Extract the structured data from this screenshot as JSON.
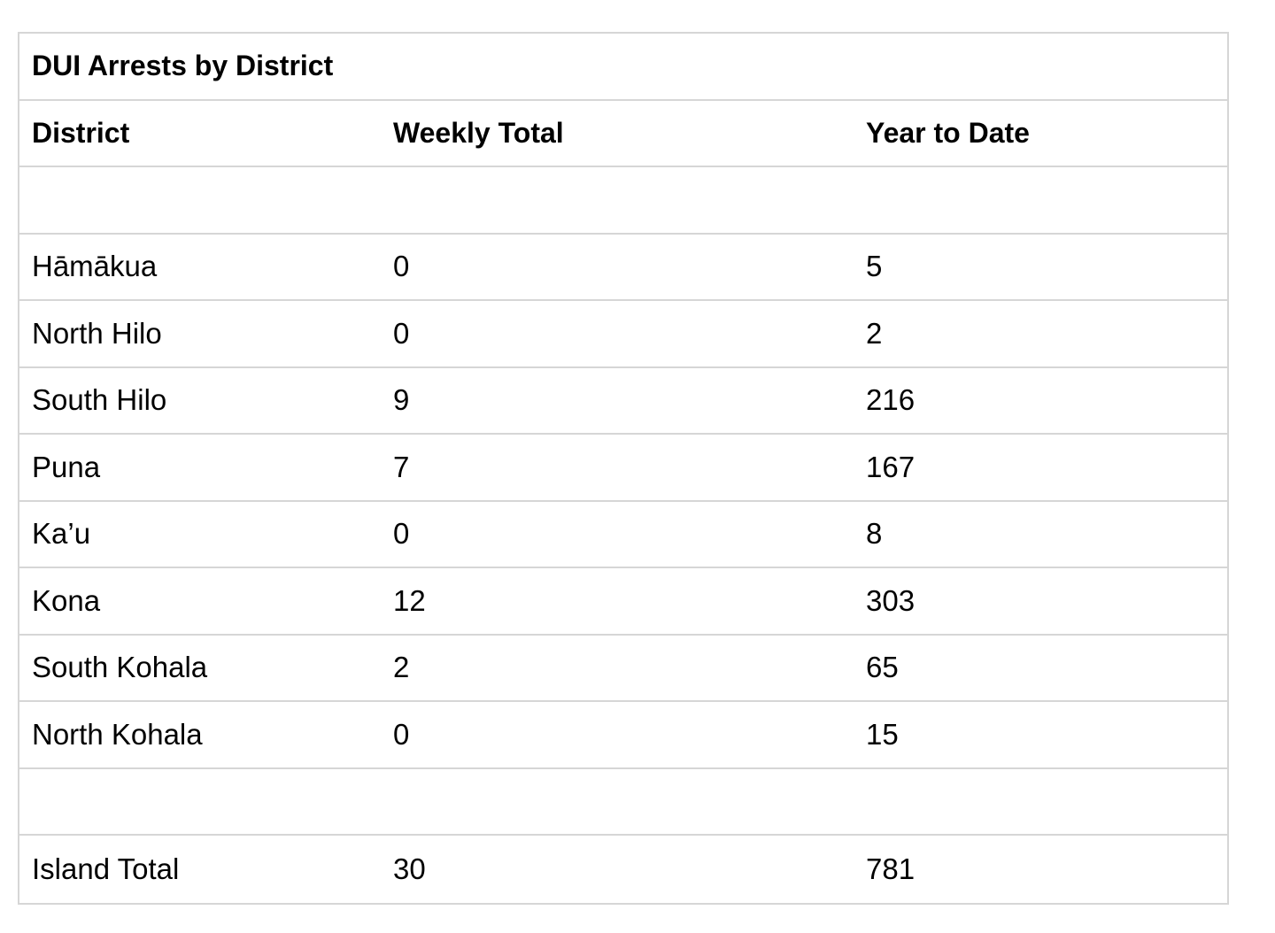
{
  "table": {
    "title": "DUI Arrests by District",
    "headers": [
      "District",
      "Weekly Total",
      "Year to Date"
    ],
    "rows": [
      [
        "",
        "",
        ""
      ],
      [
        "Hāmākua",
        "0",
        "5"
      ],
      [
        "North Hilo",
        "0",
        "2"
      ],
      [
        "South Hilo",
        "9",
        "216"
      ],
      [
        "Puna",
        "7",
        "167"
      ],
      [
        "Ka’u",
        "0",
        "8"
      ],
      [
        "Kona",
        "12",
        "303"
      ],
      [
        "South Kohala",
        "2",
        "65"
      ],
      [
        "North Kohala",
        "0",
        "15"
      ],
      [
        "",
        "",
        ""
      ],
      [
        "Island Total",
        "30",
        "781"
      ]
    ]
  }
}
